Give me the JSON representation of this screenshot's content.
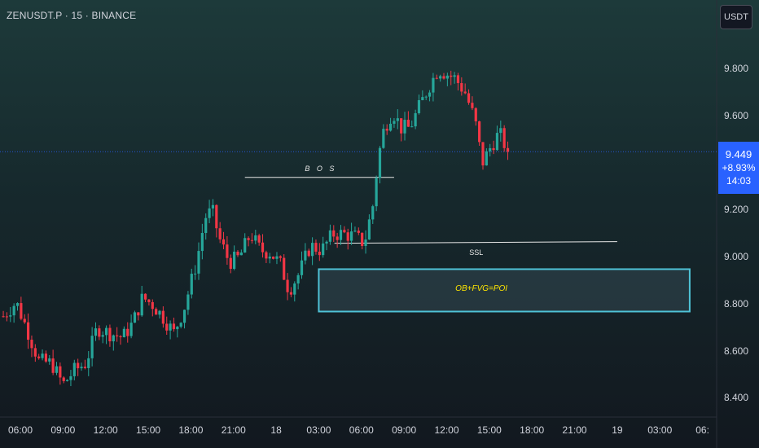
{
  "header": {
    "symbol_line": "ZENUSDT.P · 15 · BINANCE",
    "currency_button": "USDT"
  },
  "price_tag": {
    "price": "9.449",
    "change": "+8.93%",
    "countdown": "14:03"
  },
  "colors": {
    "up": "#26a69a",
    "down": "#f23645",
    "price_line": "#2962ff",
    "zone_border": "#4fc3d7",
    "annotation_line": "#e8e8e8",
    "poi_text": "#ffe600"
  },
  "chart_data": {
    "type": "candlestick",
    "interval_minutes": 15,
    "ylim": [
      8.33,
      9.98
    ],
    "yticks": [
      "9.800",
      "9.600",
      "9.200",
      "9.000",
      "8.800",
      "8.600",
      "8.400"
    ],
    "ytick_values": [
      9.8,
      9.6,
      9.2,
      9.0,
      8.8,
      8.6,
      8.4
    ],
    "xticks": [
      "06:00",
      "09:00",
      "12:00",
      "15:00",
      "18:00",
      "21:00",
      "18",
      "03:00",
      "06:00",
      "09:00",
      "12:00",
      "15:00",
      "18:00",
      "21:00",
      "19",
      "03:00",
      "06:"
    ],
    "xtick_hours": [
      0,
      3,
      6,
      9,
      12,
      15,
      18,
      21,
      24,
      27,
      30,
      33,
      36,
      39,
      42,
      45,
      48
    ],
    "last_price": 9.449,
    "close_path": [
      {
        "h": -1.2,
        "p": 8.75
      },
      {
        "h": -0.3,
        "p": 8.81
      },
      {
        "h": 0.5,
        "p": 8.69
      },
      {
        "h": 1.3,
        "p": 8.56
      },
      {
        "h": 2.2,
        "p": 8.55
      },
      {
        "h": 3.0,
        "p": 8.46
      },
      {
        "h": 3.8,
        "p": 8.52
      },
      {
        "h": 4.6,
        "p": 8.55
      },
      {
        "h": 5.4,
        "p": 8.7
      },
      {
        "h": 6.2,
        "p": 8.68
      },
      {
        "h": 7.2,
        "p": 8.66
      },
      {
        "h": 7.9,
        "p": 8.72
      },
      {
        "h": 8.6,
        "p": 8.83
      },
      {
        "h": 9.3,
        "p": 8.8
      },
      {
        "h": 10.0,
        "p": 8.75
      },
      {
        "h": 10.8,
        "p": 8.68
      },
      {
        "h": 11.5,
        "p": 8.78
      },
      {
        "h": 12.4,
        "p": 8.98
      },
      {
        "h": 13.0,
        "p": 9.17
      },
      {
        "h": 13.5,
        "p": 9.2
      },
      {
        "h": 14.0,
        "p": 9.08
      },
      {
        "h": 14.7,
        "p": 8.98
      },
      {
        "h": 15.4,
        "p": 9.0
      },
      {
        "h": 16.2,
        "p": 9.1
      },
      {
        "h": 16.9,
        "p": 9.03
      },
      {
        "h": 17.6,
        "p": 9.02
      },
      {
        "h": 18.3,
        "p": 8.97
      },
      {
        "h": 18.9,
        "p": 8.86
      },
      {
        "h": 19.6,
        "p": 8.93
      },
      {
        "h": 20.4,
        "p": 9.05
      },
      {
        "h": 21.2,
        "p": 9.03
      },
      {
        "h": 22.0,
        "p": 9.1
      },
      {
        "h": 22.7,
        "p": 9.1
      },
      {
        "h": 23.5,
        "p": 9.09
      },
      {
        "h": 24.2,
        "p": 9.06
      },
      {
        "h": 24.8,
        "p": 9.22
      },
      {
        "h": 25.2,
        "p": 9.43
      },
      {
        "h": 25.6,
        "p": 9.55
      },
      {
        "h": 26.2,
        "p": 9.62
      },
      {
        "h": 26.8,
        "p": 9.55
      },
      {
        "h": 27.4,
        "p": 9.55
      },
      {
        "h": 28.0,
        "p": 9.63
      },
      {
        "h": 28.7,
        "p": 9.72
      },
      {
        "h": 29.4,
        "p": 9.8
      },
      {
        "h": 30.0,
        "p": 9.78
      },
      {
        "h": 30.6,
        "p": 9.76
      },
      {
        "h": 31.3,
        "p": 9.7
      },
      {
        "h": 32.0,
        "p": 9.58
      },
      {
        "h": 32.5,
        "p": 9.4
      },
      {
        "h": 33.1,
        "p": 9.47
      },
      {
        "h": 33.7,
        "p": 9.53
      },
      {
        "h": 34.3,
        "p": 9.45
      }
    ],
    "annotations": [
      {
        "label": "B O S",
        "type": "line",
        "price": 9.34,
        "from_h": 15.8,
        "to_h": 26.3
      },
      {
        "label": "SSL",
        "type": "line",
        "price": 9.06,
        "from_h": 22.1,
        "to_h": 42.0
      },
      {
        "label": "OB+FVG=POI",
        "type": "zone",
        "price_top": 8.95,
        "price_bottom": 8.77,
        "from_h": 21.0,
        "to_h": 47.1
      }
    ]
  }
}
